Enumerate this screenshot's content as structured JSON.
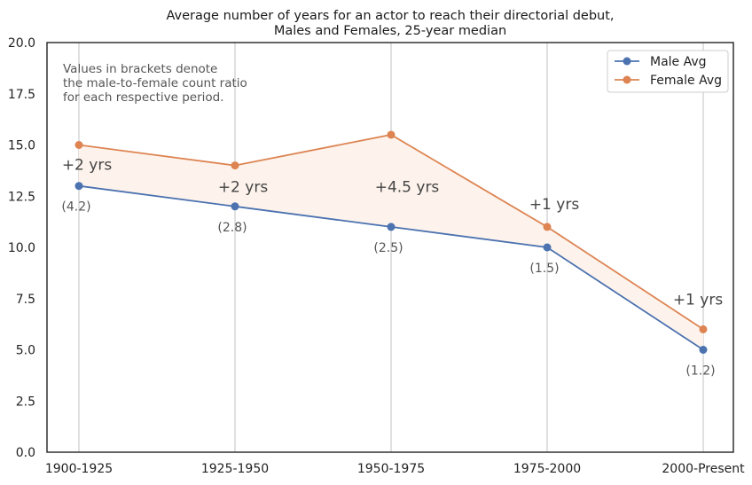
{
  "chart_data": {
    "type": "line",
    "title_line1": "Average number of years for an actor to reach their directorial debut,",
    "title_line2": "Males and Females, 25-year median",
    "categories": [
      "1900-1925",
      "1925-1950",
      "1950-1975",
      "1975-2000",
      "2000-Present"
    ],
    "series": [
      {
        "name": "Male Avg",
        "color": "#4c72b0",
        "values": [
          13,
          12,
          11,
          10,
          5
        ]
      },
      {
        "name": "Female Avg",
        "color": "#dd8452",
        "values": [
          15,
          14,
          15.5,
          11,
          6
        ]
      }
    ],
    "ylim": [
      0,
      20
    ],
    "yticks": [
      "0.0",
      "2.5",
      "5.0",
      "7.5",
      "10.0",
      "12.5",
      "15.0",
      "17.5",
      "20.0"
    ],
    "grid": "vertical",
    "legend_position": "top-right",
    "fill_color": "#fdf3ec",
    "gap_labels": [
      "+2 yrs",
      "+2 yrs",
      "+4.5 yrs",
      "+1 yrs",
      "+1 yrs"
    ],
    "ratio_labels": [
      "(4.2)",
      "(2.8)",
      "(2.5)",
      "(1.5)",
      "(1.2)"
    ],
    "note_lines": [
      "Values in brackets denote",
      "the male-to-female count ratio",
      "for each respective period."
    ]
  }
}
